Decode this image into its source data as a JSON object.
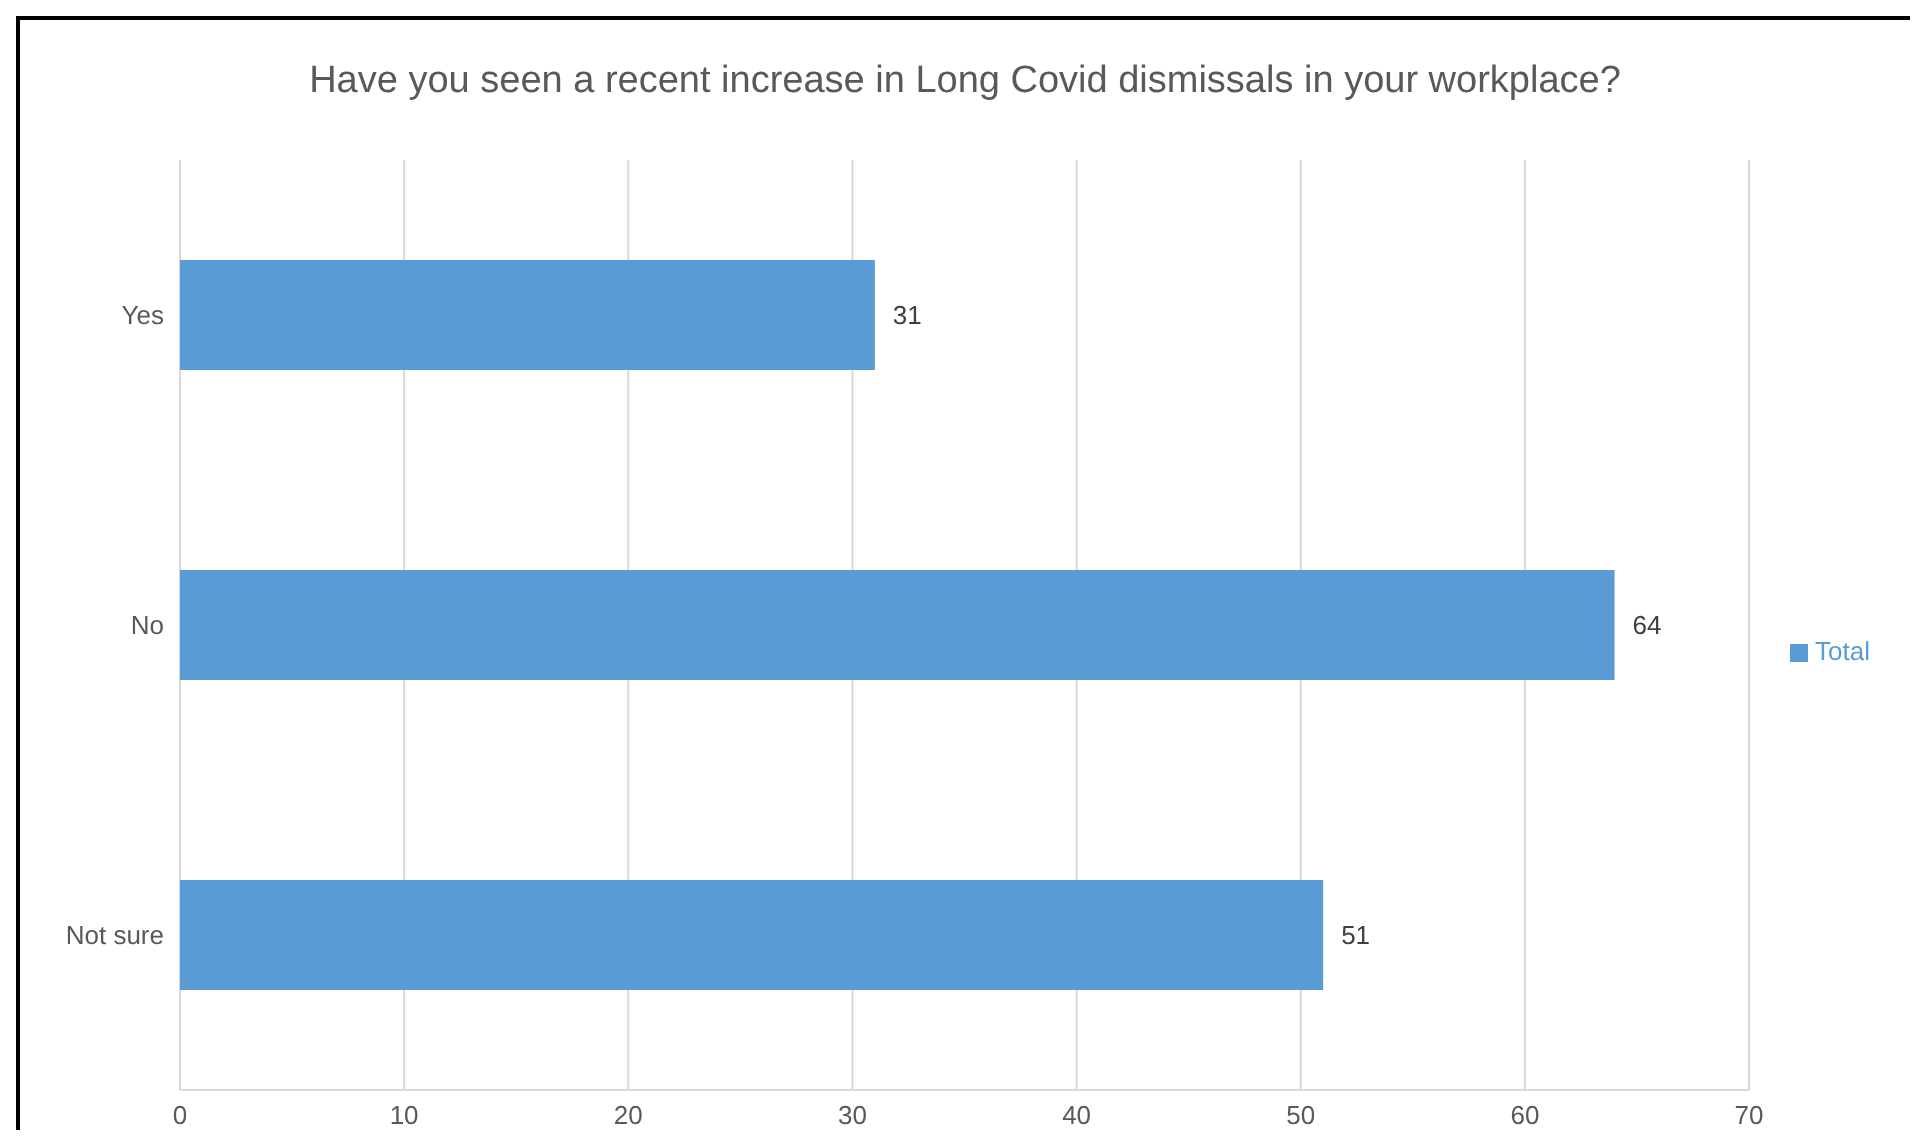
{
  "chart_data": {
    "type": "bar",
    "orientation": "horizontal",
    "title": "Have you seen a recent increase in Long Covid dismissals in your workplace?",
    "categories": [
      "Yes",
      "No",
      "Not sure"
    ],
    "series": [
      {
        "name": "Total",
        "color": "#5b9bd5",
        "values": [
          31,
          64,
          51
        ]
      }
    ],
    "xlim": [
      0,
      70
    ],
    "xticks": [
      0,
      10,
      20,
      30,
      40,
      50,
      60,
      70
    ],
    "grid": "x",
    "legend": "right",
    "data_labels": true
  }
}
